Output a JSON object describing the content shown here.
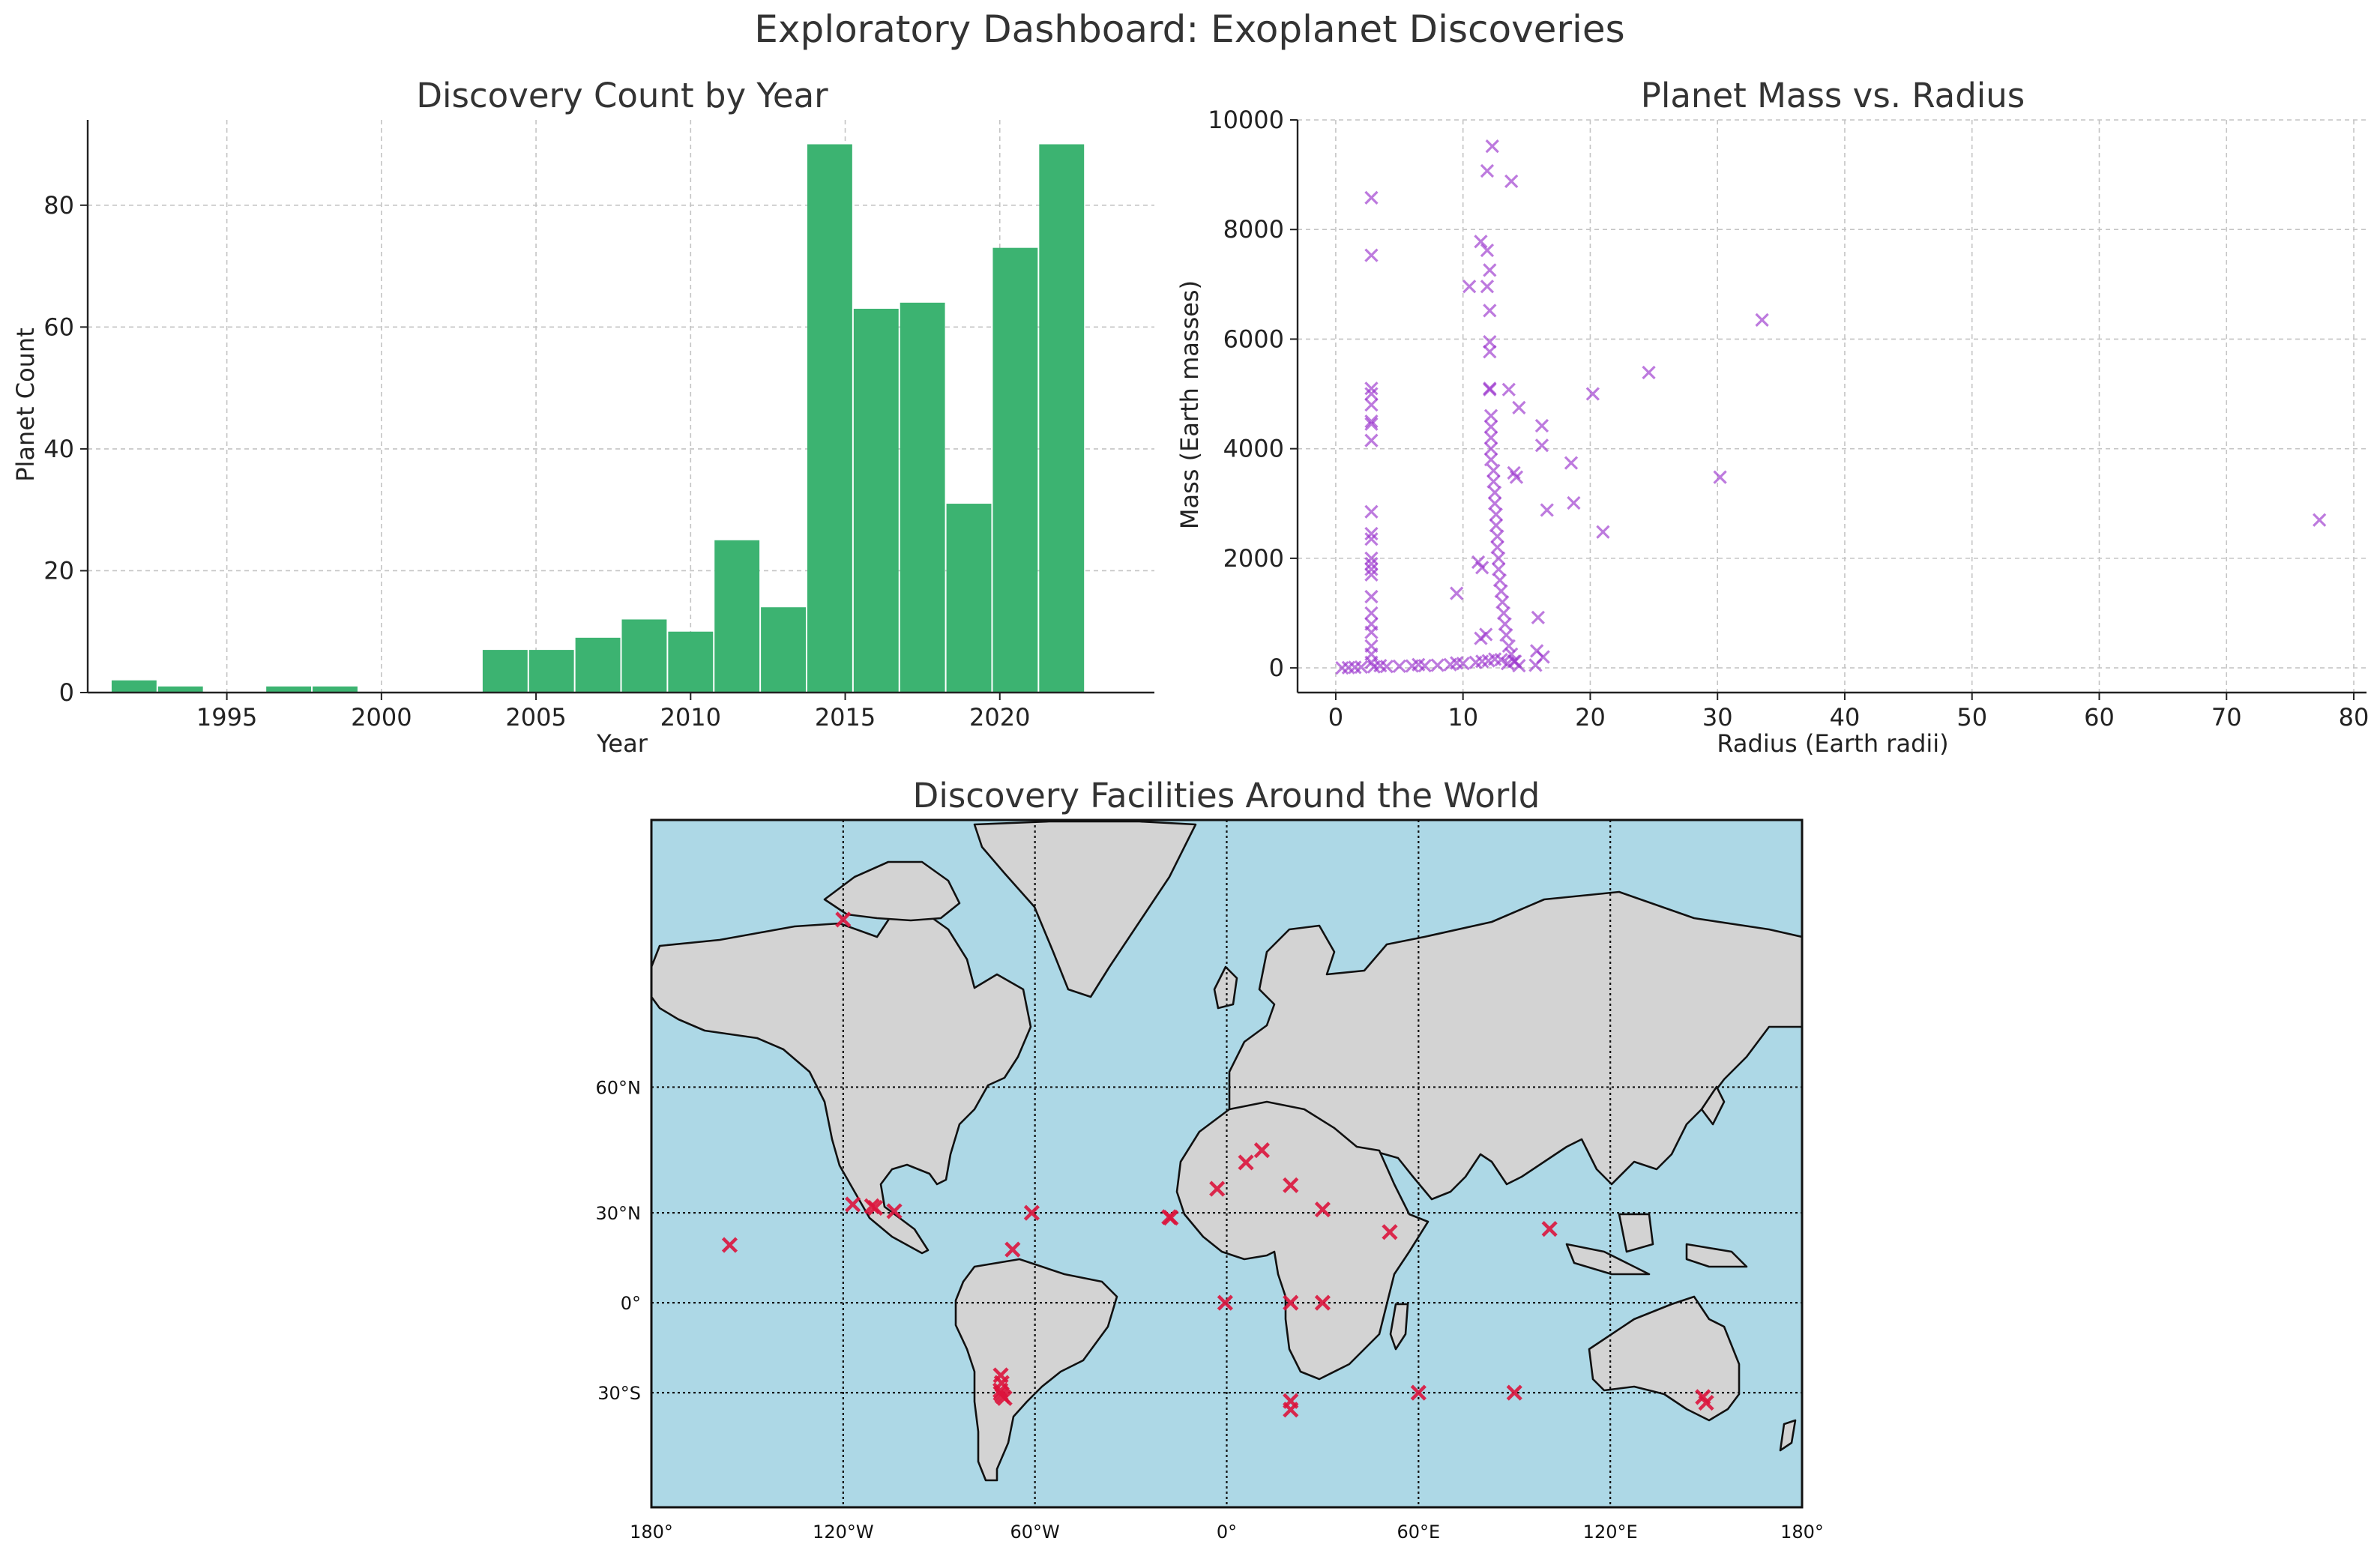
{
  "suptitle": "Exploratory Dashboard: Exoplanet Discoveries",
  "colors": {
    "bar": "#3cb371",
    "scatter": "#9932cc",
    "facility": "#dc143c",
    "ocean": "#add8e6",
    "land": "#d3d3d3"
  },
  "chart_data": [
    {
      "type": "bar",
      "title": "Discovery Count by Year",
      "xlabel": "Year",
      "ylabel": "Planet Count",
      "xlim": [
        1990.5,
        2025
      ],
      "ylim": [
        0,
        94
      ],
      "xticks": [
        "1995",
        "2000",
        "2005",
        "2010",
        "2015",
        "2020"
      ],
      "yticks": [
        "0",
        "20",
        "40",
        "60",
        "80"
      ],
      "grid": true,
      "categories": [
        "1992",
        "1994",
        "1997",
        "1999",
        "2004",
        "2005",
        "2007",
        "2008",
        "2010",
        "2011",
        "2012",
        "2014",
        "2015",
        "2017",
        "2018",
        "2020",
        "2021"
      ],
      "x": [
        1992,
        1993.5,
        1997,
        1998.5,
        2004,
        2005.5,
        2007,
        2008.5,
        2010,
        2011.5,
        2013,
        2014.5,
        2016,
        2017.5,
        2019,
        2020.5,
        2022
      ],
      "bin_width": 1.5,
      "values": [
        2,
        1,
        1,
        1,
        7,
        7,
        9,
        12,
        10,
        25,
        14,
        90,
        63,
        64,
        31,
        73,
        90
      ]
    },
    {
      "type": "scatter",
      "title": "Planet Mass vs. Radius",
      "xlabel": "Radius (Earth radii)",
      "ylabel": "Mass (Earth masses)",
      "marker": "x",
      "xlim": [
        -3,
        81
      ],
      "ylim": [
        -450,
        10000
      ],
      "xticks": [
        "0",
        "10",
        "20",
        "30",
        "40",
        "50",
        "60",
        "70",
        "80"
      ],
      "yticks": [
        "0",
        "2000",
        "4000",
        "6000",
        "8000",
        "10000"
      ],
      "grid": true,
      "points": [
        [
          2.8,
          8580
        ],
        [
          2.8,
          7530
        ],
        [
          2.8,
          5100
        ],
        [
          2.8,
          5000
        ],
        [
          2.8,
          4800
        ],
        [
          2.8,
          4500
        ],
        [
          2.8,
          4450
        ],
        [
          2.8,
          4150
        ],
        [
          2.8,
          2850
        ],
        [
          2.8,
          2450
        ],
        [
          2.8,
          2350
        ],
        [
          2.8,
          2000
        ],
        [
          2.8,
          1900
        ],
        [
          2.8,
          1800
        ],
        [
          2.8,
          1700
        ],
        [
          2.8,
          1300
        ],
        [
          2.8,
          1000
        ],
        [
          2.8,
          800
        ],
        [
          2.8,
          650
        ],
        [
          2.8,
          400
        ],
        [
          2.8,
          250
        ],
        [
          2.8,
          100
        ],
        [
          12.3,
          9520
        ],
        [
          11.9,
          9070
        ],
        [
          13.8,
          8880
        ],
        [
          11.4,
          7780
        ],
        [
          11.9,
          7620
        ],
        [
          12.1,
          7260
        ],
        [
          10.5,
          6960
        ],
        [
          11.9,
          6960
        ],
        [
          12.1,
          6520
        ],
        [
          12.1,
          5950
        ],
        [
          12.1,
          5770
        ],
        [
          12.1,
          5100
        ],
        [
          12.1,
          5080
        ],
        [
          13.6,
          5080
        ],
        [
          14.4,
          4750
        ],
        [
          16.2,
          4420
        ],
        [
          16.2,
          4060
        ],
        [
          14.0,
          3560
        ],
        [
          14.2,
          3480
        ],
        [
          16.6,
          2880
        ],
        [
          18.7,
          3010
        ],
        [
          18.5,
          3740
        ],
        [
          20.2,
          5000
        ],
        [
          24.6,
          5390
        ],
        [
          21.0,
          2480
        ],
        [
          30.2,
          3480
        ],
        [
          33.5,
          6350
        ],
        [
          77.3,
          2700
        ],
        [
          15.9,
          920
        ],
        [
          9.5,
          1360
        ],
        [
          11.2,
          1930
        ],
        [
          11.5,
          1830
        ],
        [
          11.4,
          540
        ],
        [
          11.8,
          610
        ],
        [
          15.8,
          310
        ],
        [
          16.3,
          200
        ],
        [
          15.7,
          50
        ],
        [
          12.2,
          4600
        ],
        [
          12.2,
          4400
        ],
        [
          12.2,
          4200
        ],
        [
          12.2,
          4000
        ],
        [
          12.2,
          3800
        ],
        [
          12.4,
          3600
        ],
        [
          12.4,
          3400
        ],
        [
          12.5,
          3200
        ],
        [
          12.5,
          3000
        ],
        [
          12.6,
          2800
        ],
        [
          12.6,
          2600
        ],
        [
          12.7,
          2400
        ],
        [
          12.7,
          2200
        ],
        [
          12.8,
          2000
        ],
        [
          12.8,
          1800
        ],
        [
          12.9,
          1600
        ],
        [
          13.0,
          1400
        ],
        [
          13.1,
          1200
        ],
        [
          13.2,
          1000
        ],
        [
          13.3,
          800
        ],
        [
          13.4,
          600
        ],
        [
          13.6,
          400
        ],
        [
          13.8,
          250
        ],
        [
          14.1,
          120
        ],
        [
          14.4,
          40
        ],
        [
          0.5,
          0
        ],
        [
          1.0,
          5
        ],
        [
          1.5,
          10
        ],
        [
          2.0,
          15
        ],
        [
          3.0,
          20
        ],
        [
          4.0,
          25
        ],
        [
          5.0,
          30
        ],
        [
          6.0,
          35
        ],
        [
          7.0,
          40
        ],
        [
          8.0,
          50
        ],
        [
          9.0,
          60
        ],
        [
          10.0,
          80
        ],
        [
          11.0,
          100
        ],
        [
          12.0,
          130
        ],
        [
          13.0,
          150
        ],
        [
          14.0,
          120
        ],
        [
          3.5,
          40
        ],
        [
          6.5,
          60
        ],
        [
          9.5,
          90
        ],
        [
          11.5,
          120
        ],
        [
          12.5,
          160
        ],
        [
          13.5,
          80
        ]
      ]
    },
    {
      "type": "map",
      "title": "Discovery Facilities Around the World",
      "projection": "mercator",
      "lon_range": [
        -180,
        180
      ],
      "lat_range": [
        -58,
        84
      ],
      "lat_labels": [
        "60°N",
        "30°N",
        "0°",
        "30°S"
      ],
      "lon_labels": [
        "180°",
        "120°W",
        "60°W",
        "0°",
        "60°E",
        "120°E",
        "180°"
      ],
      "parallels": [
        -30,
        0,
        30,
        60
      ],
      "meridians": [
        -120,
        -60,
        0,
        60,
        120
      ],
      "facilities": [
        [
          -155.5,
          19.8
        ],
        [
          -120,
          79
        ],
        [
          -117,
          32.5
        ],
        [
          -111,
          32
        ],
        [
          -110,
          31.5
        ],
        [
          -104,
          30.5
        ],
        [
          -61,
          30
        ],
        [
          -67,
          18.3
        ],
        [
          -70.7,
          -24.6
        ],
        [
          -70.4,
          -27
        ],
        [
          -70.8,
          -29.3
        ],
        [
          -70.7,
          -30.2
        ],
        [
          -70.2,
          -31
        ],
        [
          -69.5,
          -31.6
        ],
        [
          -18,
          28.7
        ],
        [
          -17.5,
          28.5
        ],
        [
          -3,
          37
        ],
        [
          6,
          44
        ],
        [
          11,
          47
        ],
        [
          20,
          38
        ],
        [
          30,
          31
        ],
        [
          51,
          24
        ],
        [
          101,
          25
        ],
        [
          -0.5,
          0
        ],
        [
          20,
          0
        ],
        [
          30,
          0
        ],
        [
          20,
          -32.5
        ],
        [
          20,
          -35
        ],
        [
          60,
          -30
        ],
        [
          90,
          -30
        ],
        [
          149,
          -31.3
        ],
        [
          150,
          -33
        ]
      ]
    }
  ]
}
